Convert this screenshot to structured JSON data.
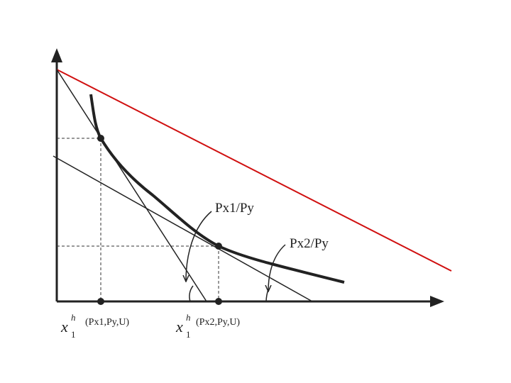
{
  "labels": {
    "slope_1": "Px1/Py",
    "slope_2": "Px2/Py",
    "x_1": {
      "symbol": "x",
      "sup": "h",
      "sub": "1",
      "args": "(Px1,Py,U)"
    },
    "x_2": {
      "symbol": "x",
      "sup": "h",
      "sub": "1",
      "args": "(Px2,Py,U)"
    }
  }
}
